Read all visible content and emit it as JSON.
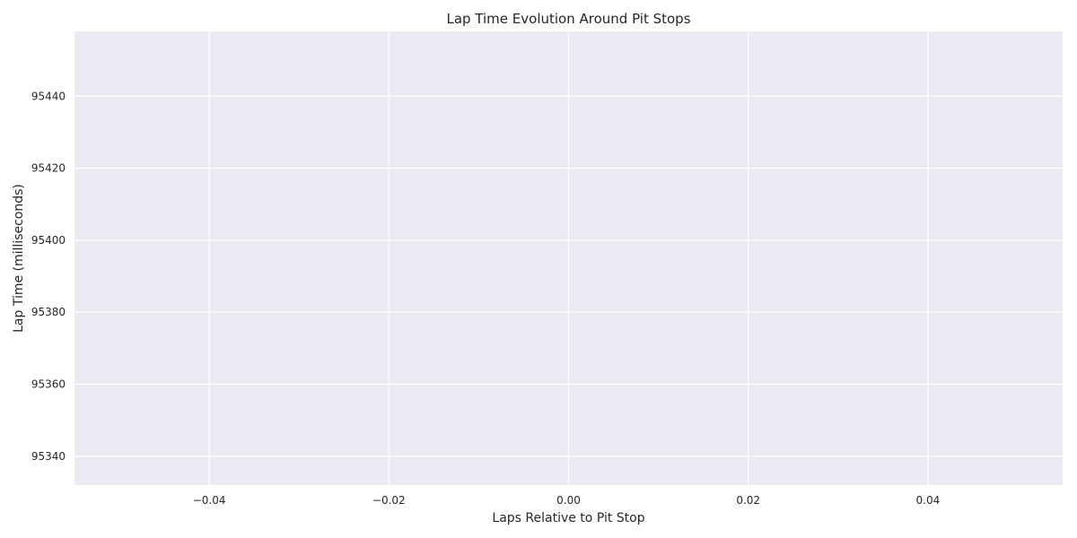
{
  "chart_data": {
    "type": "line",
    "title": "Lap Time Evolution Around Pit Stops",
    "xlabel": "Laps Relative to Pit Stop",
    "ylabel": "Lap Time (milliseconds)",
    "xlim": [
      -0.055,
      0.055
    ],
    "ylim": [
      95332,
      95458
    ],
    "x_ticks": [
      -0.04,
      -0.02,
      0.0,
      0.02,
      0.04
    ],
    "x_tick_labels": [
      "−0.04",
      "−0.02",
      "0.00",
      "0.02",
      "0.04"
    ],
    "y_ticks": [
      95340,
      95360,
      95380,
      95400,
      95420,
      95440
    ],
    "y_tick_labels": [
      "95340",
      "95360",
      "95380",
      "95400",
      "95420",
      "95440"
    ],
    "grid": true,
    "series": [],
    "colors": {
      "background": "#eaeaf2",
      "grid": "#ffffff",
      "text": "#262626"
    }
  }
}
